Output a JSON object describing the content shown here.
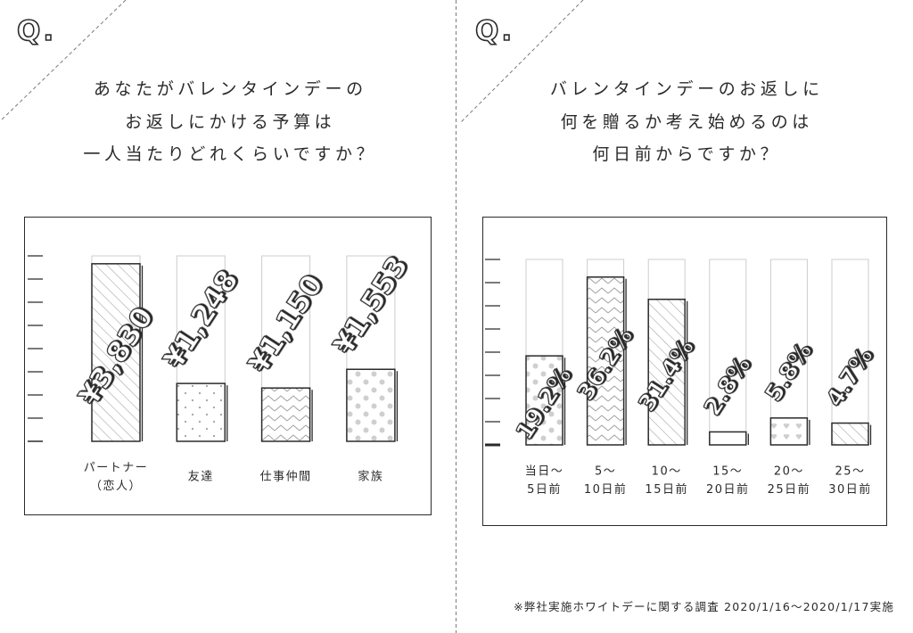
{
  "panels": [
    {
      "badge": "Q."
    },
    {
      "badge": "Q."
    }
  ],
  "chart_data": [
    {
      "type": "bar",
      "title_lines": [
        "あなたがバレンタインデーの",
        "お返しにかける予算は",
        "一人当たりどれくらいですか？"
      ],
      "categories": [
        [
          "パートナー",
          "（恋人）"
        ],
        [
          "友達"
        ],
        [
          "仕事仲間"
        ],
        [
          "家族"
        ]
      ],
      "values": [
        3830,
        1248,
        1150,
        1553
      ],
      "data_labels": [
        "¥3,830",
        "¥1,248",
        "¥1,150",
        "¥1,553"
      ],
      "ylim": [
        0,
        4000
      ],
      "ytick_step": 500,
      "grid": false,
      "bar_patterns": [
        "diagonal-lines",
        "small-dots",
        "zigzag",
        "polka-dots"
      ]
    },
    {
      "type": "bar",
      "title_lines": [
        "バレンタインデーのお返しに",
        "何を贈るか考え始めるのは",
        "何日前からですか？"
      ],
      "categories": [
        [
          "当日～",
          "5日前"
        ],
        [
          "5～",
          "10日前"
        ],
        [
          "10～",
          "15日前"
        ],
        [
          "15～",
          "20日前"
        ],
        [
          "20～",
          "25日前"
        ],
        [
          "25～",
          "30日前"
        ]
      ],
      "values": [
        19.2,
        36.2,
        31.4,
        2.8,
        5.8,
        4.7
      ],
      "data_labels": [
        "19.2%",
        "36.2%",
        "31.4%",
        "2.8%",
        "5.8%",
        "4.7%"
      ],
      "ylim": [
        0,
        40
      ],
      "ytick_step": 5,
      "grid": false,
      "bar_patterns": [
        "polka-dots",
        "zigzag",
        "diagonal-lines",
        "plain",
        "hearts",
        "diagonal-lines"
      ]
    }
  ],
  "footer": {
    "note": "※弊社実施ホワイトデーに関する調査 2020/1/16～2020/1/17実施"
  },
  "colors": {
    "ink": "#2a2a2a",
    "track": "#cccccc",
    "pattern": "#a0a0a0",
    "pattern_light": "#cfcfcf",
    "divider": "#7a7a7a",
    "background": "#ffffff"
  }
}
